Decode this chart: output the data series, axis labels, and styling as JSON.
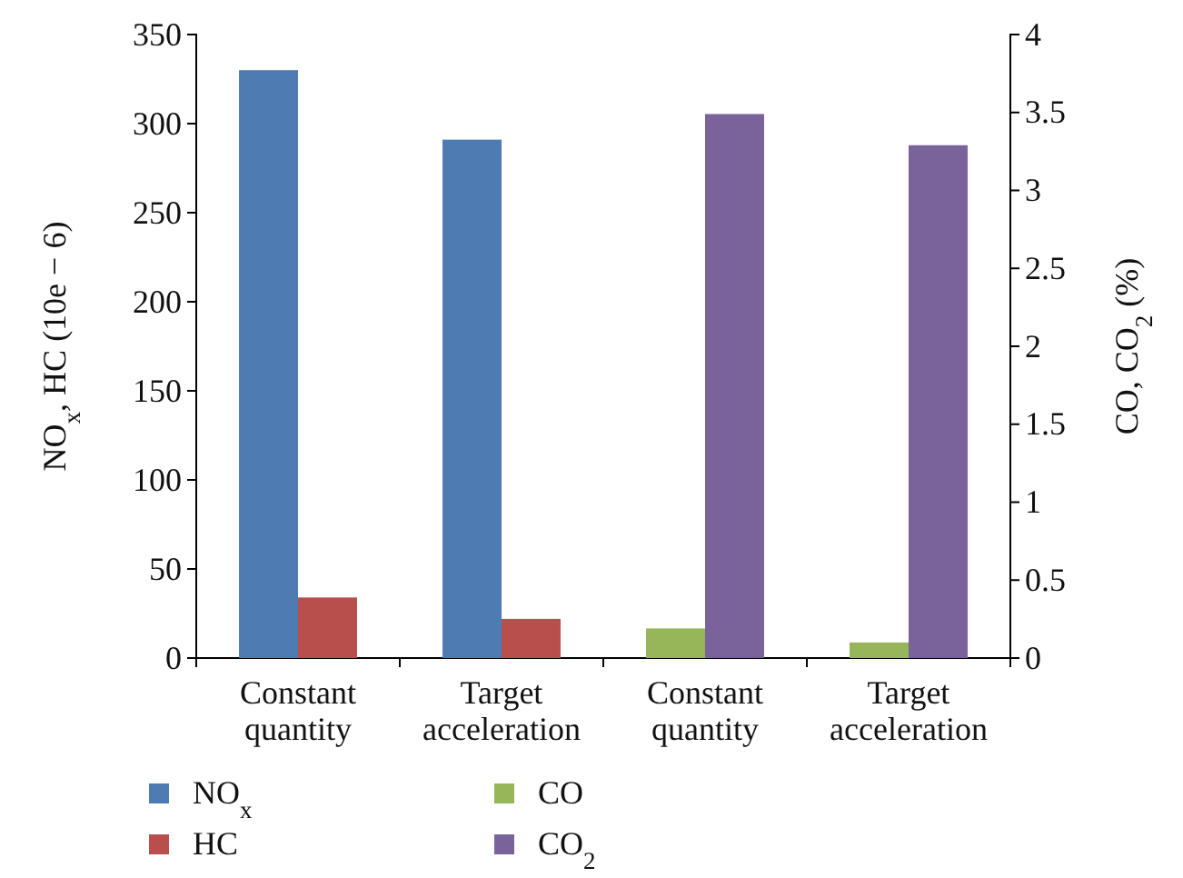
{
  "chart_data": {
    "type": "bar",
    "categories": [
      "Constant quantity",
      "Target acceleration",
      "Constant quantity",
      "Target acceleration"
    ],
    "ylabel": "NO$_{x}$, HC (10e − 6)",
    "y2label": "CO, CO$_{2}$ (%)",
    "ylim": [
      0,
      350
    ],
    "yticks": [
      0,
      50,
      100,
      150,
      200,
      250,
      300,
      350
    ],
    "y2lim": [
      0,
      4
    ],
    "y2ticks": [
      0,
      0.5,
      1,
      1.5,
      2,
      2.5,
      3,
      3.5,
      4
    ],
    "series": [
      {
        "name": "NO$_{x}$",
        "color": "#4f7bb3",
        "values": [
          330,
          291,
          null,
          null
        ]
      },
      {
        "name": "HC",
        "color": "#b84f4d",
        "values": [
          34,
          22,
          null,
          null
        ]
      },
      {
        "name": "CO",
        "color": "#97b65a",
        "values": [
          null,
          null,
          0.19,
          0.1
        ],
        "axis": "y2"
      },
      {
        "name": "CO$_{2}$",
        "color": "#7a629b",
        "values": [
          null,
          null,
          3.49,
          3.29
        ],
        "axis": "y2"
      }
    ],
    "grid": false,
    "legend": "bottom"
  }
}
